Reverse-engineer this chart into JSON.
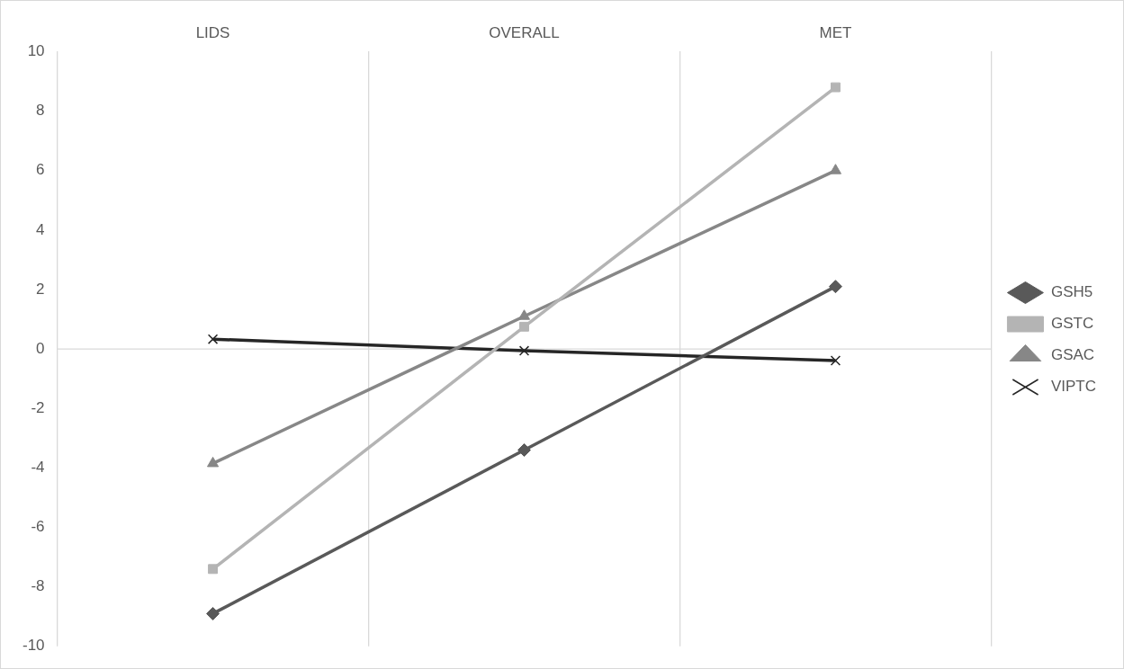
{
  "chart_data": {
    "type": "line",
    "categories": [
      "LIDS",
      "OVERALL",
      "MET"
    ],
    "series": [
      {
        "name": "GSH5",
        "color": "#595959",
        "marker": "diamond",
        "values": [
          -8.9,
          -3.4,
          2.1
        ]
      },
      {
        "name": "GSTC",
        "color": "#b4b4b4",
        "marker": "square",
        "values": [
          -7.4,
          0.75,
          8.8
        ]
      },
      {
        "name": "GSAC",
        "color": "#878787",
        "marker": "triangle",
        "values": [
          -3.85,
          1.1,
          6.0
        ]
      },
      {
        "name": "VIPTC",
        "color": "#262626",
        "marker": "cross",
        "values": [
          0.33,
          -0.06,
          -0.39
        ]
      }
    ],
    "ylim": [
      -10,
      10
    ],
    "yticks": [
      -10,
      -8,
      -6,
      -4,
      -2,
      0,
      2,
      4,
      6,
      8,
      10
    ],
    "grid": "x",
    "ref_lines": [
      {
        "axis": "y",
        "value": 0,
        "color": "#d9d9d9"
      }
    ],
    "legend": "right"
  }
}
